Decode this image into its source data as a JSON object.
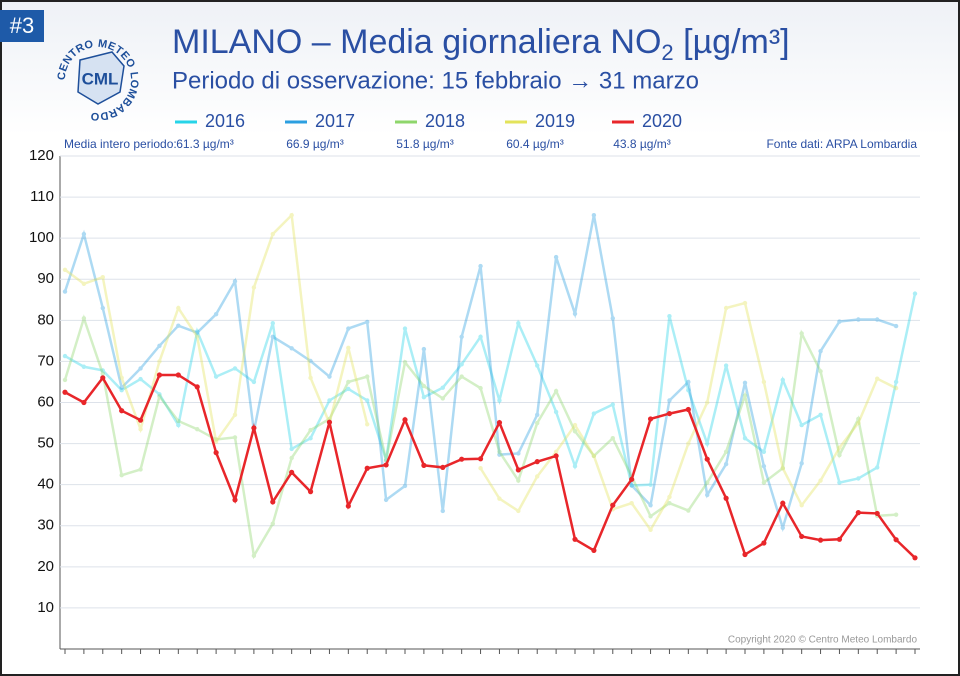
{
  "badge": "#3",
  "logo": {
    "ring": "CENTRO METEO LOMBARDO",
    "initials": "CML"
  },
  "chart_data": {
    "type": "line",
    "title": {
      "text": "MILANO – Media giornaliera NO",
      "subscript": "2",
      "unit": " [µg/m³]"
    },
    "subtitle": "Periodo di osservazione: 15 febbraio → 31 marzo",
    "mean_caption": "Media intero periodo:",
    "source": "Fonte dati: ARPA Lombardia",
    "copyright": "Copyright 2020 © Centro Meteo Lombardo",
    "ylim": [
      0,
      120
    ],
    "yticks": [
      10,
      20,
      30,
      40,
      50,
      60,
      70,
      80,
      90,
      100,
      110,
      120
    ],
    "grid": true,
    "series": [
      {
        "name": "2016",
        "color": "#26d4e8",
        "mean_label": "61.3 µg/m³",
        "values": [
          71.3,
          68.7,
          67.8,
          63,
          65.7,
          62,
          54.5,
          77.3,
          66.3,
          68.3,
          65,
          79.3,
          48.7,
          51.3,
          60.5,
          63.3,
          60.5,
          46,
          78,
          61.3,
          63.6,
          69.3,
          76,
          60.5,
          79.3,
          69,
          57.7,
          44.5,
          57.3,
          59.5,
          39.8,
          40,
          81,
          63,
          50,
          69,
          51.3,
          48,
          65.5,
          54.5,
          57,
          40.5,
          41.5,
          44.2,
          65,
          86.5
        ]
      },
      {
        "name": "2017",
        "color": "#2b9fe0",
        "mean_label": "66.9 µg/m³",
        "values": [
          87,
          101,
          83,
          63.6,
          68.3,
          73.8,
          78.7,
          77,
          81.5,
          89.5,
          53,
          76,
          73.2,
          70.1,
          66.3,
          78,
          79.6,
          36.3,
          39.7,
          73,
          33.6,
          76,
          93.2,
          47.3,
          47.6,
          57,
          95.4,
          81.6,
          105.6,
          80.5,
          39.8,
          35,
          60.5,
          65,
          37.5,
          45,
          64.8,
          44.5,
          29.5,
          45.2,
          72.5,
          79.7,
          80.2,
          80.2,
          78.6,
          null
        ]
      },
      {
        "name": "2018",
        "color": "#8ed66b",
        "mean_label": "51.8 µg/m³",
        "values": [
          65.5,
          80.5,
          67,
          42.3,
          43.7,
          61.5,
          55.5,
          53.5,
          51,
          51.5,
          22.7,
          30.5,
          46.5,
          53.3,
          56,
          65,
          66.3,
          46,
          69.8,
          64,
          61,
          66.3,
          63.5,
          48,
          41,
          55,
          62.8,
          53,
          47,
          51.3,
          42,
          32.3,
          35.5,
          33.7,
          40.5,
          48,
          61.7,
          40.5,
          44,
          76.8,
          67.6,
          47.2,
          56,
          32.4,
          32.7,
          null
        ]
      },
      {
        "name": "2019",
        "color": "#e3e35a",
        "mean_label": "60.4 µg/m³",
        "values": [
          92.3,
          88.9,
          90.5,
          66,
          53.5,
          70,
          83,
          76,
          50.5,
          57,
          88,
          101,
          105.6,
          66,
          55,
          73.3,
          54.7,
          null,
          null,
          null,
          null,
          null,
          44,
          36.6,
          33.6,
          42,
          48,
          54.5,
          47,
          34,
          35.5,
          29,
          37,
          50,
          60,
          83,
          84.2,
          65,
          44,
          35,
          41,
          49,
          55,
          65.8,
          63.5,
          null
        ]
      },
      {
        "name": "2020",
        "color": "#e8262a",
        "mean_label": "43.8 µg/m³",
        "values": [
          62.5,
          60,
          66,
          58,
          55.7,
          66.7,
          66.7,
          63.8,
          47.8,
          36.3,
          53.8,
          35.8,
          43,
          38.3,
          55.2,
          34.8,
          44,
          44.8,
          55.8,
          44.7,
          44.2,
          46.2,
          46.3,
          55.1,
          43.6,
          45.6,
          47,
          26.7,
          24,
          35,
          41.3,
          56,
          57.3,
          58.3,
          46.2,
          36.7,
          23,
          25.8,
          35.5,
          27.4,
          26.5,
          26.7,
          33.2,
          33,
          26.6,
          22.2
        ]
      }
    ]
  }
}
